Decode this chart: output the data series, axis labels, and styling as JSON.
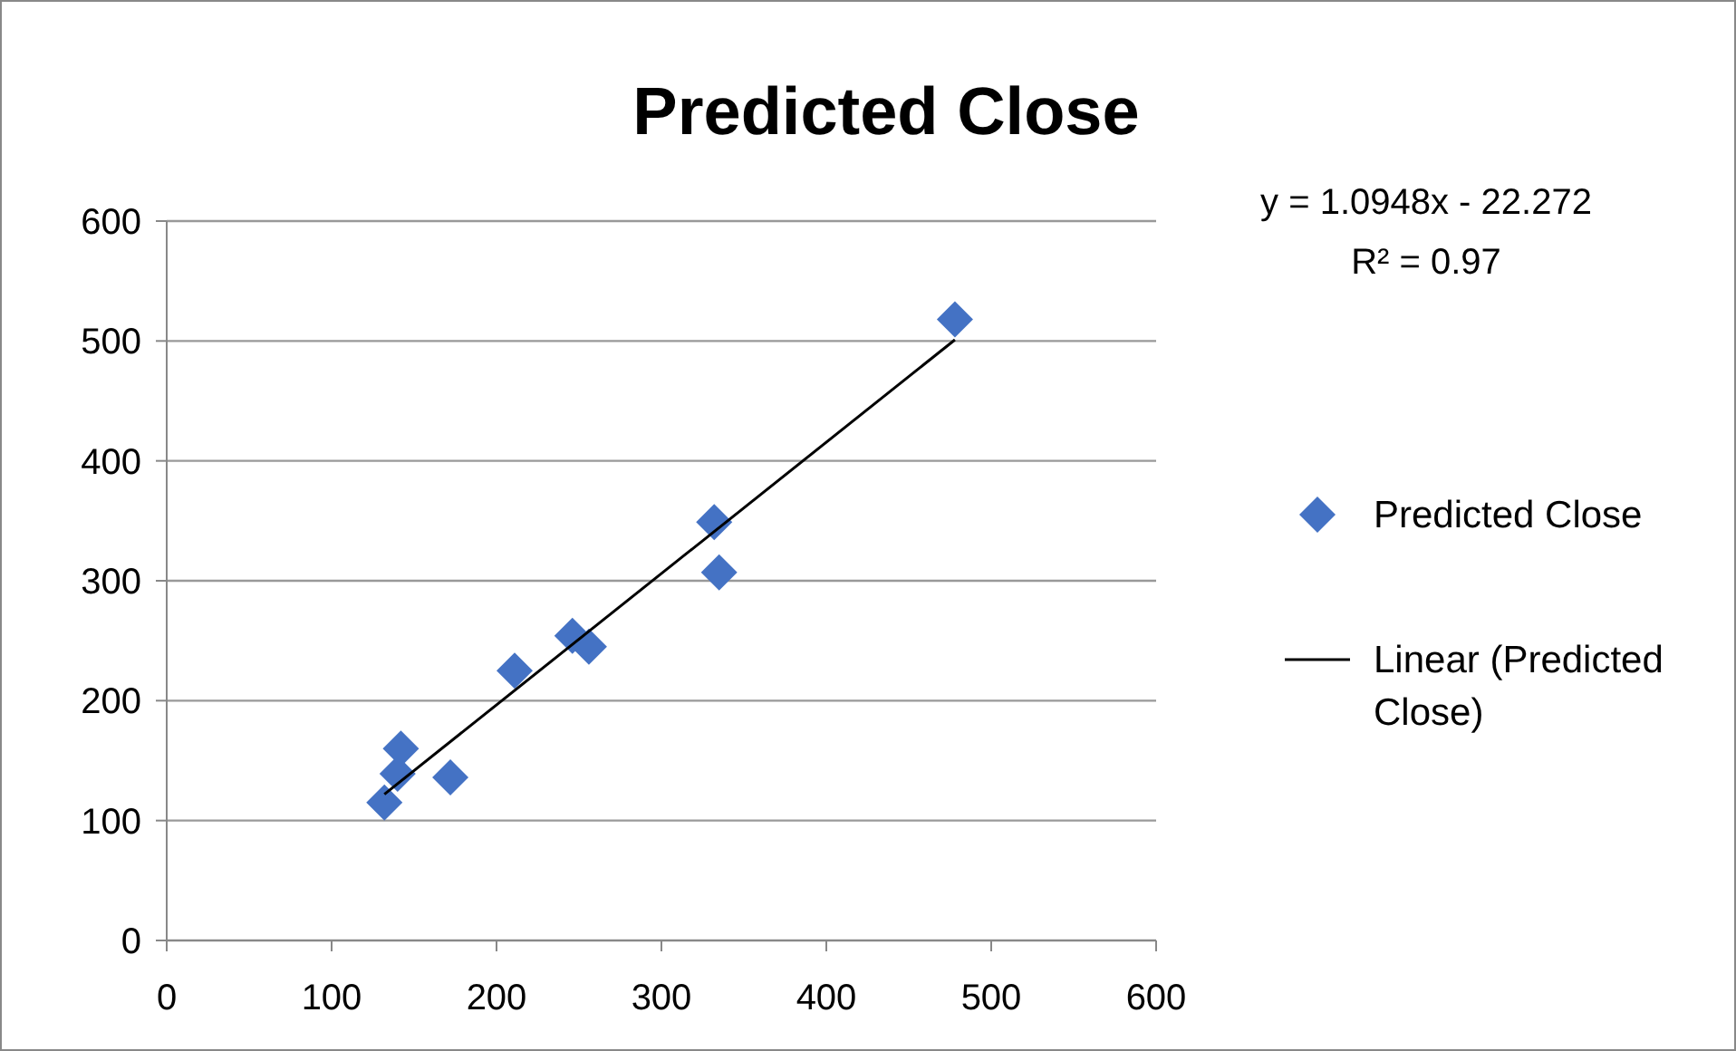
{
  "chart_data": {
    "type": "scatter",
    "title": "Predicted Close",
    "xlim": [
      0,
      600
    ],
    "xticks": [
      0,
      100,
      200,
      300,
      400,
      500,
      600
    ],
    "ylim": [
      0,
      600
    ],
    "yticks": [
      0,
      100,
      200,
      300,
      400,
      500,
      600
    ],
    "grid": "y",
    "legend": "right",
    "series": [
      {
        "name": "Predicted Close",
        "marker": "diamond",
        "color": "#4472c4",
        "x": [
          132,
          140,
          142,
          172,
          211,
          246,
          256,
          332,
          335,
          478
        ],
        "values": [
          115,
          139,
          160,
          136,
          225,
          254,
          245,
          349,
          307,
          518
        ]
      },
      {
        "name": "Linear (Predicted Close)",
        "type": "line",
        "color": "#000000",
        "line_style": "solid",
        "x": [
          132,
          478
        ],
        "values": [
          122,
          501
        ]
      }
    ],
    "annotations": [
      "y = 1.0948x - 22.272",
      "R² = 0.97"
    ]
  }
}
